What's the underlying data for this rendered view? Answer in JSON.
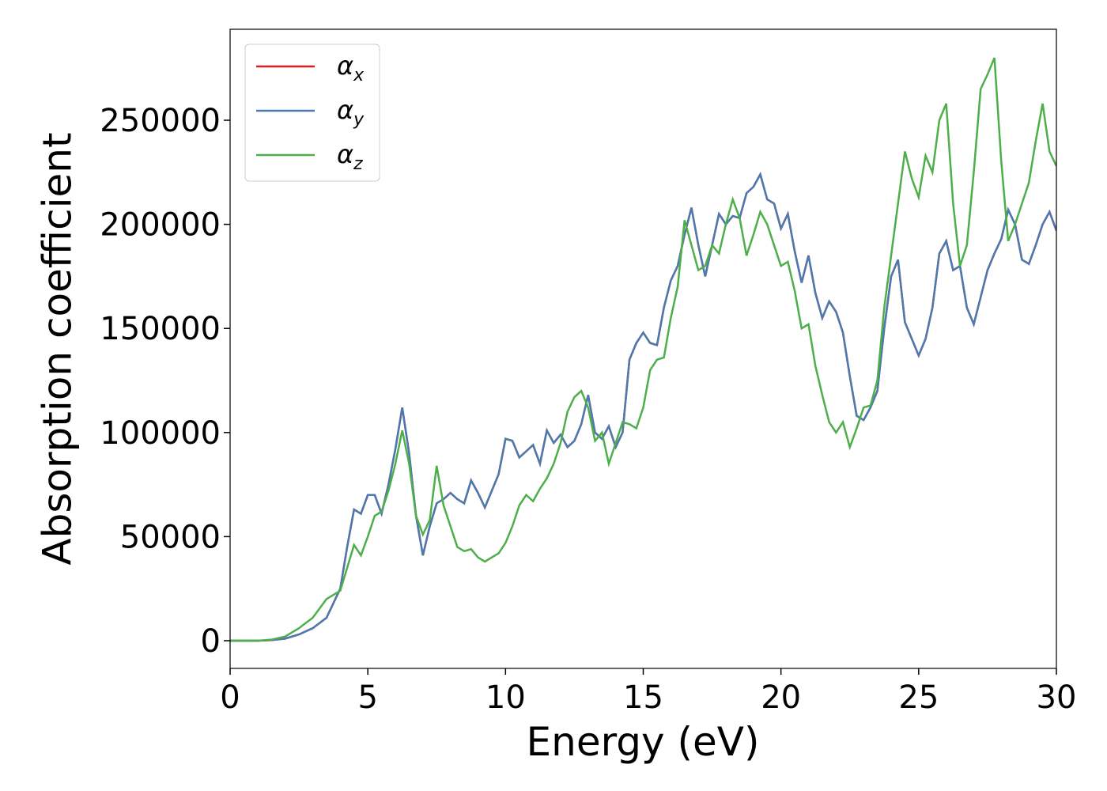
{
  "chart_data": {
    "type": "line",
    "xlabel": "Energy (eV)",
    "ylabel": "Absorption coefficient",
    "x": [
      0,
      1,
      1.5,
      2,
      2.5,
      3,
      3.5,
      4,
      4.25,
      4.5,
      4.75,
      5,
      5.25,
      5.5,
      5.75,
      6,
      6.25,
      6.5,
      6.75,
      7,
      7.25,
      7.5,
      7.75,
      8,
      8.25,
      8.5,
      8.75,
      9,
      9.25,
      9.5,
      9.75,
      10,
      10.25,
      10.5,
      10.75,
      11,
      11.25,
      11.5,
      11.75,
      12,
      12.25,
      12.5,
      12.75,
      13,
      13.25,
      13.5,
      13.75,
      14,
      14.25,
      14.5,
      14.75,
      15,
      15.25,
      15.5,
      15.75,
      16,
      16.25,
      16.5,
      16.75,
      17,
      17.25,
      17.5,
      17.75,
      18,
      18.25,
      18.5,
      18.75,
      19,
      19.25,
      19.5,
      19.75,
      20,
      20.25,
      20.5,
      20.75,
      21,
      21.25,
      21.5,
      21.75,
      22,
      22.25,
      22.5,
      22.75,
      23,
      23.25,
      23.5,
      23.75,
      24,
      24.25,
      24.5,
      24.75,
      25,
      25.25,
      25.5,
      25.75,
      26,
      26.25,
      26.5,
      26.75,
      27,
      27.25,
      27.5,
      27.75,
      28,
      28.25,
      28.5,
      28.75,
      29,
      29.25,
      29.5,
      29.75,
      30
    ],
    "series": [
      {
        "name": "αx",
        "color": "#e41a1c",
        "values": [
          0,
          0,
          300,
          1000,
          3000,
          6000,
          11000,
          25000,
          45000,
          63000,
          61000,
          70000,
          70000,
          61000,
          75000,
          92000,
          112000,
          90000,
          60000,
          41000,
          55000,
          66000,
          68000,
          71000,
          68000,
          66000,
          77000,
          71000,
          64000,
          72000,
          80000,
          97000,
          96000,
          88000,
          91000,
          94000,
          85000,
          101000,
          95000,
          99000,
          93000,
          96000,
          104000,
          118000,
          100000,
          97000,
          103000,
          93000,
          100000,
          135000,
          143000,
          148000,
          143000,
          142000,
          160000,
          173000,
          180000,
          195000,
          208000,
          190000,
          175000,
          190000,
          205000,
          200000,
          204000,
          203000,
          215000,
          218000,
          224000,
          212000,
          210000,
          198000,
          205000,
          187000,
          172000,
          185000,
          167000,
          155000,
          163000,
          158000,
          148000,
          127000,
          108000,
          106000,
          112000,
          120000,
          150000,
          175000,
          183000,
          153000,
          145000,
          137000,
          145000,
          160000,
          186000,
          192000,
          178000,
          180000,
          160000,
          152000,
          165000,
          178000,
          186000,
          193000,
          207000,
          200000,
          183000,
          181000,
          190000,
          200000,
          206000,
          197000
        ]
      },
      {
        "name": "αy",
        "color": "#4a7bb0",
        "values": [
          0,
          0,
          300,
          1000,
          3000,
          6000,
          11000,
          25000,
          45000,
          63000,
          61000,
          70000,
          70000,
          61000,
          75000,
          92000,
          112000,
          90000,
          60000,
          41000,
          55000,
          66000,
          68000,
          71000,
          68000,
          66000,
          77000,
          71000,
          64000,
          72000,
          80000,
          97000,
          96000,
          88000,
          91000,
          94000,
          85000,
          101000,
          95000,
          99000,
          93000,
          96000,
          104000,
          118000,
          100000,
          97000,
          103000,
          93000,
          100000,
          135000,
          143000,
          148000,
          143000,
          142000,
          160000,
          173000,
          180000,
          195000,
          208000,
          190000,
          175000,
          190000,
          205000,
          200000,
          204000,
          203000,
          215000,
          218000,
          224000,
          212000,
          210000,
          198000,
          205000,
          187000,
          172000,
          185000,
          167000,
          155000,
          163000,
          158000,
          148000,
          127000,
          108000,
          106000,
          112000,
          120000,
          150000,
          175000,
          183000,
          153000,
          145000,
          137000,
          145000,
          160000,
          186000,
          192000,
          178000,
          180000,
          160000,
          152000,
          165000,
          178000,
          186000,
          193000,
          207000,
          200000,
          183000,
          181000,
          190000,
          200000,
          206000,
          197000
        ]
      },
      {
        "name": "αz",
        "color": "#4daf4a",
        "values": [
          0,
          0,
          500,
          2000,
          6000,
          11000,
          20000,
          24000,
          35000,
          46000,
          41000,
          50000,
          60000,
          62000,
          72000,
          85000,
          101000,
          85000,
          60000,
          51000,
          58000,
          84000,
          65000,
          55000,
          45000,
          43000,
          44000,
          40000,
          38000,
          40000,
          42000,
          47000,
          55000,
          65000,
          70000,
          67000,
          73000,
          78000,
          85000,
          95000,
          110000,
          117000,
          120000,
          112000,
          96000,
          100000,
          85000,
          95000,
          105000,
          104000,
          102000,
          112000,
          130000,
          135000,
          136000,
          155000,
          170000,
          202000,
          190000,
          178000,
          180000,
          190000,
          186000,
          200000,
          212000,
          203000,
          185000,
          195000,
          206000,
          200000,
          190000,
          180000,
          182000,
          168000,
          150000,
          152000,
          132000,
          118000,
          105000,
          100000,
          105000,
          93000,
          102000,
          112000,
          113000,
          125000,
          160000,
          185000,
          210000,
          235000,
          222000,
          213000,
          233000,
          225000,
          250000,
          258000,
          210000,
          180000,
          190000,
          225000,
          265000,
          272000,
          280000,
          230000,
          192000,
          200000,
          210000,
          220000,
          240000,
          258000,
          235000,
          228000
        ]
      }
    ],
    "xlim": [
      0,
      30
    ],
    "xticks": [
      0,
      5,
      10,
      15,
      20,
      25,
      30
    ],
    "ylim": [
      -13300,
      293700
    ],
    "yticks": [
      0,
      50000,
      100000,
      150000,
      200000,
      250000
    ],
    "grid": false,
    "legend": "upper left"
  }
}
